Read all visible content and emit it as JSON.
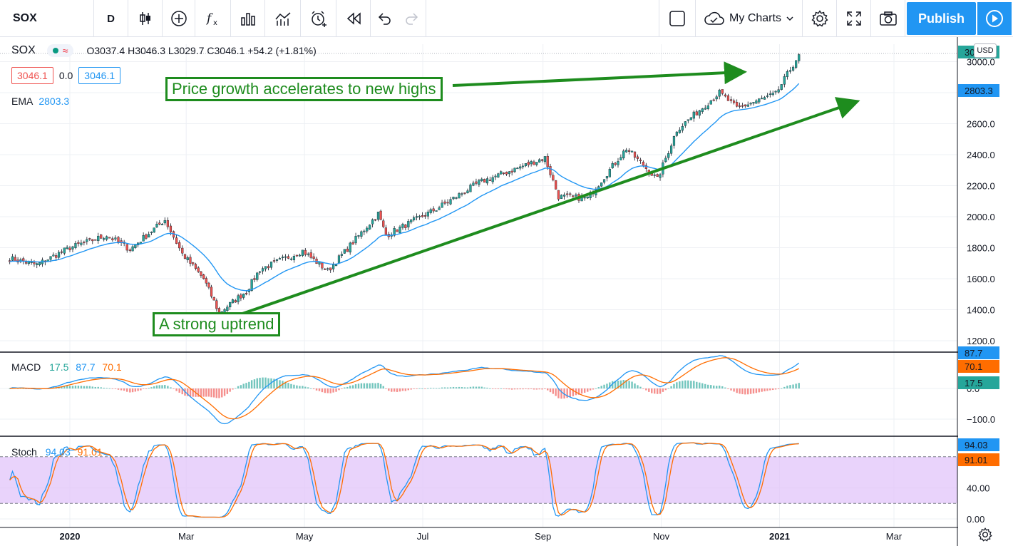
{
  "toolbar": {
    "symbol": "SOX",
    "interval": "D",
    "my_charts_label": "My Charts",
    "publish_label": "Publish"
  },
  "legend": {
    "symbol": "SOX",
    "ohlc": "O3037.4 H3046.3 L3029.7 C3046.1 +54.2 (+1.81%)",
    "bid": "3046.1",
    "spread": "0.0",
    "ask": "3046.1",
    "ema_label": "EMA",
    "ema_value": "2803.3",
    "currency": "USD"
  },
  "macd_legend": {
    "label": "MACD",
    "hist": "17.5",
    "macd": "87.7",
    "signal": "70.1"
  },
  "stoch_legend": {
    "label": "Stoch",
    "k": "94.03",
    "d": "91.01"
  },
  "annotations": {
    "highs": "Price growth accelerates to new highs",
    "uptrend": "A strong uptrend"
  },
  "colors": {
    "up": "#26a69a",
    "down": "#ef5350",
    "ema": "#2196f3",
    "signal": "#ff6d00",
    "arrow": "#1e8c1e",
    "band": "#e1c4f9"
  },
  "price_axis": {
    "ticks": [
      "3000.0",
      "2800.0",
      "2600.0",
      "2400.0",
      "2200.0",
      "2000.0",
      "1800.0",
      "1600.0",
      "1400.0",
      "1200.0"
    ],
    "last_price_label": "3046.1",
    "ema_label": "2803.3"
  },
  "macd_axis": {
    "ticks": [
      "0.0",
      "−100.0"
    ],
    "macd_label": "87.7",
    "signal_label": "70.1",
    "hist_label": "17.5"
  },
  "stoch_axis": {
    "ticks": [
      "80.00",
      "40.00",
      "0.00"
    ],
    "k_label": "94.03",
    "d_label": "91.01"
  },
  "time_axis": [
    "2020",
    "Mar",
    "May",
    "Jul",
    "Sep",
    "Nov",
    "2021",
    "Mar"
  ],
  "chart_data": {
    "type": "candlestick",
    "title": "SOX",
    "period": "Dec 2019 – Jan 2021 (daily)",
    "price_range": [
      1100,
      3100
    ],
    "close_path": [
      [
        "2019-12-01",
        1730
      ],
      [
        "2019-12-15",
        1690
      ],
      [
        "2020-01-01",
        1800
      ],
      [
        "2020-01-20",
        1880
      ],
      [
        "2020-02-01",
        1790
      ],
      [
        "2020-02-19",
        1980
      ],
      [
        "2020-02-28",
        1760
      ],
      [
        "2020-03-10",
        1600
      ],
      [
        "2020-03-18",
        1380
      ],
      [
        "2020-03-25",
        1450
      ],
      [
        "2020-04-01",
        1520
      ],
      [
        "2020-04-08",
        1660
      ],
      [
        "2020-04-30",
        1780
      ],
      [
        "2020-05-13",
        1650
      ],
      [
        "2020-06-08",
        2020
      ],
      [
        "2020-06-12",
        1880
      ],
      [
        "2020-07-08",
        2050
      ],
      [
        "2020-07-30",
        2220
      ],
      [
        "2020-09-02",
        2380
      ],
      [
        "2020-09-09",
        2130
      ],
      [
        "2020-09-24",
        2120
      ],
      [
        "2020-10-14",
        2440
      ],
      [
        "2020-10-30",
        2240
      ],
      [
        "2020-11-09",
        2560
      ],
      [
        "2020-12-01",
        2800
      ],
      [
        "2020-12-10",
        2700
      ],
      [
        "2020-12-30",
        2790
      ],
      [
        "2021-01-11",
        3046
      ]
    ],
    "ema_last": 2803.3,
    "macd": {
      "macd_last": 87.7,
      "signal_last": 70.1,
      "hist_last": 17.5,
      "range": [
        -130,
        120
      ]
    },
    "stoch": {
      "k_last": 94.03,
      "d_last": 91.01,
      "upper_band": 80,
      "lower_band": 20,
      "range": [
        -5,
        110
      ]
    }
  }
}
